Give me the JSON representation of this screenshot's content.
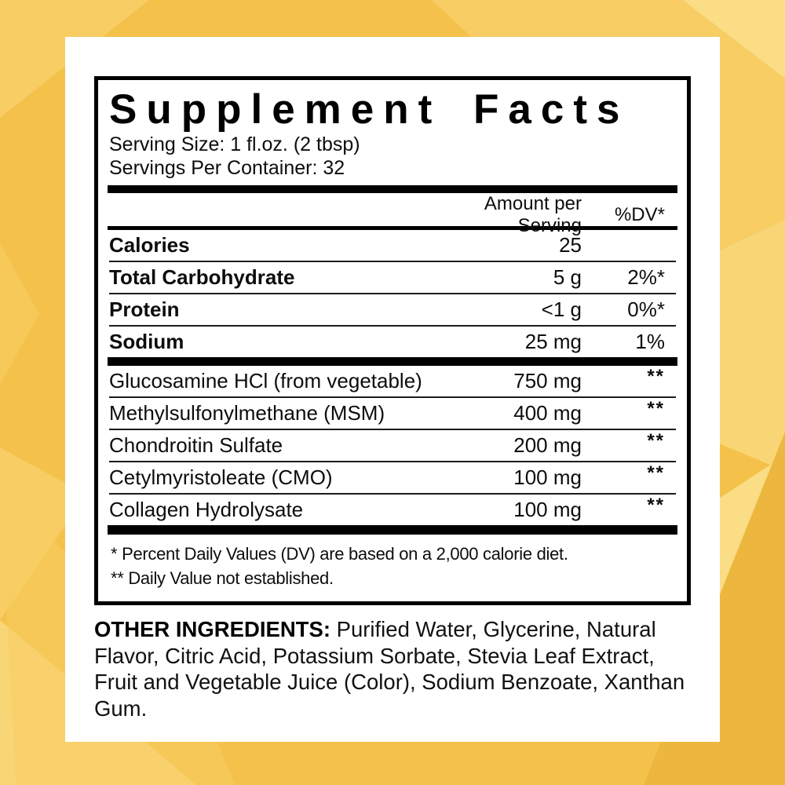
{
  "background": {
    "base_color": "#f4c14b",
    "facet_light": "#f7cd64",
    "facet_lighter": "#fadd85",
    "facet_dark": "#edb63e"
  },
  "panel": {
    "title": "Supplement Facts",
    "serving_size": "Serving Size: 1 fl.oz. (2 tbsp)",
    "servings_per_container": "Servings Per Container: 32",
    "header": {
      "amount": "Amount per Serving",
      "dv": "%DV*"
    },
    "nutrients": [
      {
        "name": "Calories",
        "amount": "25",
        "dv": ""
      },
      {
        "name": "Total Carbohydrate",
        "amount": "5 g",
        "dv": "2%*"
      },
      {
        "name": "Protein",
        "amount": "<1 g",
        "dv": "0%*"
      },
      {
        "name": "Sodium",
        "amount": "25 mg",
        "dv": "1%"
      }
    ],
    "ingredients": [
      {
        "name": "Glucosamine HCl (from vegetable)",
        "amount": "750 mg",
        "dv": "**"
      },
      {
        "name": "Methylsulfonylmethane (MSM)",
        "amount": "400 mg",
        "dv": "**"
      },
      {
        "name": "Chondroitin Sulfate",
        "amount": "200 mg",
        "dv": "**"
      },
      {
        "name": "Cetylmyristoleate (CMO)",
        "amount": "100 mg",
        "dv": "**"
      },
      {
        "name": "Collagen Hydrolysate",
        "amount": "100 mg",
        "dv": "**"
      }
    ],
    "footnotes": [
      "* Percent Daily Values (DV) are based on a 2,000 calorie diet.",
      "** Daily Value not established."
    ]
  },
  "other_ingredients": {
    "label": "OTHER INGREDIENTS:",
    "text": "Purified Water, Glycerine, Natural Flavor, Citric Acid, Potassium Sorbate, Stevia Leaf Extract, Fruit and Vegetable Juice (Color), Sodium Benzoate, Xanthan Gum."
  }
}
